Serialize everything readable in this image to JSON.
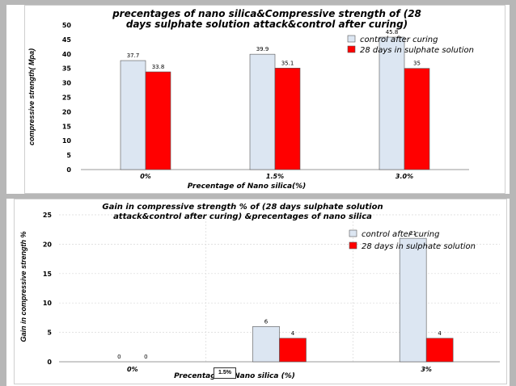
{
  "chart_data": [
    {
      "type": "bar",
      "title_lines": [
        "precentages of nano silica&Compressive strength of  (28",
        "days sulphate solution attack&control after curing)"
      ],
      "xlabel": "Precentage of Nano silica(%)",
      "ylabel": "compressive strength( Mpa)",
      "ylim": [
        0,
        50
      ],
      "yticks": [
        0,
        5,
        10,
        15,
        20,
        25,
        30,
        35,
        40,
        45,
        50
      ],
      "categories": [
        "0%",
        "1.5%",
        "3.0%"
      ],
      "series": [
        {
          "name": "control after curing",
          "values": [
            37.7,
            39.9,
            45.8
          ],
          "labels": [
            "37.7",
            "39.9",
            "45.8"
          ],
          "color": "#dce6f2"
        },
        {
          "name": "28 days in sulphate solution",
          "values": [
            33.8,
            35.1,
            35
          ],
          "labels": [
            "33.8",
            "35.1",
            "35"
          ],
          "color": "#ff0000"
        }
      ],
      "legend_position": "top-right",
      "grid": false
    },
    {
      "type": "bar",
      "title_lines": [
        "Gain in compressive strength % of (28 days sulphate solution",
        "attack&control after curing) &precentages of nano silica"
      ],
      "xlabel": "Precentage of Nano silica (%)",
      "ylabel": "Gain in compressive strength %",
      "ylim": [
        0,
        25
      ],
      "yticks": [
        0,
        5,
        10,
        15,
        20,
        25
      ],
      "categories": [
        "0%",
        "1.5%",
        "3%"
      ],
      "series": [
        {
          "name": "control after curing",
          "values": [
            0,
            6,
            21
          ],
          "labels": [
            "0",
            "6",
            "21"
          ],
          "color": "#dce6f2"
        },
        {
          "name": "28 days in sulphate solution",
          "values": [
            0,
            4,
            4
          ],
          "labels": [
            "0",
            "4",
            "4"
          ],
          "color": "#ff0000"
        }
      ],
      "legend_position": "top-right",
      "grid": true
    }
  ]
}
